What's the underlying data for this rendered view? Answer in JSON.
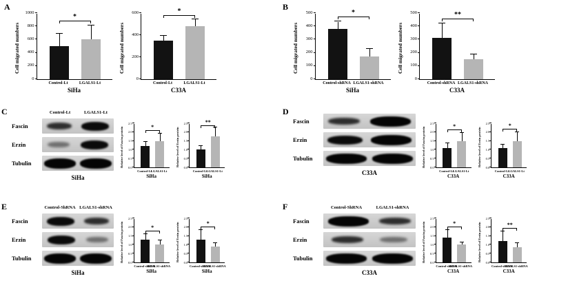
{
  "panels": [
    "A",
    "B",
    "C",
    "D",
    "E",
    "F"
  ],
  "colors": {
    "bar_dark": "#121212",
    "bar_gray": "#b5b5b5",
    "axis": "#000000",
    "blot_bg": "#cccccc"
  },
  "blots": [
    {
      "headers": [
        "Control-Lt",
        "LGALS1-Lt"
      ],
      "cell_line": "SiHa",
      "rows": [
        {
          "label": "Fascin",
          "lanes": [
            "medium",
            "dark"
          ]
        },
        {
          "label": "Erzin",
          "lanes": [
            "light",
            "dark"
          ]
        },
        {
          "label": "Tubulin",
          "lanes": [
            "tubulin",
            "tubulin"
          ]
        }
      ]
    },
    {
      "headers": [],
      "cell_line": "C33A",
      "rows": [
        {
          "label": "Fascin",
          "lanes": [
            "medium",
            "tubulin"
          ]
        },
        {
          "label": "Erzin",
          "lanes": [
            "dark",
            "tubulin"
          ]
        },
        {
          "label": "Tubulin",
          "lanes": [
            "tubulin",
            "tubulin"
          ]
        }
      ]
    },
    {
      "headers": [
        "Control-ShRNA",
        "LGALS1-shRNA"
      ],
      "cell_line": "SiHa",
      "rows": [
        {
          "label": "Fascin",
          "lanes": [
            "dark",
            "medium"
          ]
        },
        {
          "label": "Erzin",
          "lanes": [
            "dark",
            "light"
          ]
        },
        {
          "label": "Tubulin",
          "lanes": [
            "tubulin",
            "tubulin"
          ]
        }
      ]
    },
    {
      "headers": [
        "Control-ShRNA",
        "LGALS1-shRNA"
      ],
      "cell_line": "C33A",
      "rows": [
        {
          "label": "Fascin",
          "lanes": [
            "tubulin",
            "medium"
          ]
        },
        {
          "label": "Erzin",
          "lanes": [
            "medium",
            "light"
          ]
        },
        {
          "label": "Tubulin",
          "lanes": [
            "tubulin",
            "tubulin"
          ]
        }
      ]
    }
  ],
  "chart_data": [
    {
      "type": "bar",
      "size": "large",
      "panel": "A",
      "ylabel": "Cell migrated numbers",
      "xlabel": "SiHa",
      "categories": [
        "Control-Lt",
        "LGALS1-Lt"
      ],
      "values": [
        500,
        600
      ],
      "errors": [
        190,
        215
      ],
      "ylim": [
        0,
        1000
      ],
      "ystep": 200,
      "significance": "*"
    },
    {
      "type": "bar",
      "size": "large",
      "panel": "A",
      "ylabel": "Cell migrated numbers",
      "xlabel": "C33A",
      "categories": [
        "Control-Lt",
        "LGALS1-Lt"
      ],
      "values": [
        350,
        480
      ],
      "errors": [
        45,
        65
      ],
      "ylim": [
        0,
        600
      ],
      "ystep": 200,
      "significance": "*"
    },
    {
      "type": "bar",
      "size": "large",
      "panel": "B",
      "ylabel": "Cell migrated numbers",
      "xlabel": "SiHa",
      "categories": [
        "Control-shRNA",
        "LGALS1-shRNA"
      ],
      "values": [
        380,
        170
      ],
      "errors": [
        55,
        60
      ],
      "ylim": [
        0,
        500
      ],
      "ystep": 100,
      "significance": "*"
    },
    {
      "type": "bar",
      "size": "large",
      "panel": "B",
      "ylabel": "Cell migrated numbers",
      "xlabel": "C33A",
      "categories": [
        "Control-shRNA",
        "LGALS1-shRNA"
      ],
      "values": [
        310,
        150
      ],
      "errors": [
        110,
        40
      ],
      "ylim": [
        0,
        500
      ],
      "ystep": 100,
      "significance": "**"
    },
    {
      "type": "bar",
      "size": "small",
      "panel": "C",
      "ylabel": "Relative level of Fascin protein",
      "xlabel": "SiHa",
      "categories": [
        "Control-Lt",
        "LGALS1-Lt"
      ],
      "values": [
        1.2,
        1.5
      ],
      "errors": [
        0.25,
        0.4
      ],
      "ylim": [
        0,
        2.5
      ],
      "ystep": 0.5,
      "significance": "*"
    },
    {
      "type": "bar",
      "size": "small",
      "panel": "C",
      "ylabel": "Relative level of Erzin protein",
      "xlabel": "SiHa",
      "categories": [
        "Control-Lt",
        "LGALS1-Lt"
      ],
      "values": [
        1.0,
        1.75
      ],
      "errors": [
        0.2,
        0.5
      ],
      "ylim": [
        0,
        2.5
      ],
      "ystep": 0.5,
      "significance": "**"
    },
    {
      "type": "bar",
      "size": "small",
      "panel": "D",
      "ylabel": "Relative level of Fascin protein",
      "xlabel": "C33A",
      "categories": [
        "Control-Lt",
        "LGALS1-Lt"
      ],
      "values": [
        1.1,
        1.5
      ],
      "errors": [
        0.25,
        0.45
      ],
      "ylim": [
        0,
        2.5
      ],
      "ystep": 0.5,
      "significance": "*"
    },
    {
      "type": "bar",
      "size": "small",
      "panel": "D",
      "ylabel": "Relative level of Erzin protein",
      "xlabel": "C33A",
      "categories": [
        "Control-Lt",
        "LGALS1-Lt"
      ],
      "values": [
        1.1,
        1.5
      ],
      "errors": [
        0.2,
        0.5
      ],
      "ylim": [
        0,
        2.5
      ],
      "ystep": 0.5,
      "significance": "*"
    },
    {
      "type": "bar",
      "size": "small",
      "panel": "E",
      "ylabel": "Relative level of Fascin protein",
      "xlabel": "SiHa",
      "categories": [
        "Control-shRNA",
        "LGALS1-shRNA"
      ],
      "values": [
        1.3,
        1.0
      ],
      "errors": [
        0.3,
        0.25
      ],
      "ylim": [
        0,
        2.5
      ],
      "ystep": 0.5,
      "significance": "*"
    },
    {
      "type": "bar",
      "size": "small",
      "panel": "E",
      "ylabel": "Relative level of Erzin protein",
      "xlabel": "SiHa",
      "categories": [
        "Control-shRNA",
        "LGALS1-shRNA"
      ],
      "values": [
        1.3,
        0.9
      ],
      "errors": [
        0.55,
        0.2
      ],
      "ylim": [
        0,
        2.5
      ],
      "ystep": 0.5,
      "significance": "*"
    },
    {
      "type": "bar",
      "size": "small",
      "panel": "F",
      "ylabel": "Relative level of Fascin protein",
      "xlabel": "C33A",
      "categories": [
        "Control-shRNA",
        "LGALS1-shRNA"
      ],
      "values": [
        1.4,
        1.0
      ],
      "errors": [
        0.45,
        0.15
      ],
      "ylim": [
        0,
        2.5
      ],
      "ystep": 0.5,
      "significance": "*"
    },
    {
      "type": "bar",
      "size": "small",
      "panel": "F",
      "ylabel": "Relative level of Erzin protein",
      "xlabel": "C33A",
      "categories": [
        "Control-shRNA",
        "LGALS1-shRNA"
      ],
      "values": [
        1.2,
        0.85
      ],
      "errors": [
        0.55,
        0.25
      ],
      "ylim": [
        0,
        2.5
      ],
      "ystep": 0.5,
      "significance": "**"
    }
  ]
}
